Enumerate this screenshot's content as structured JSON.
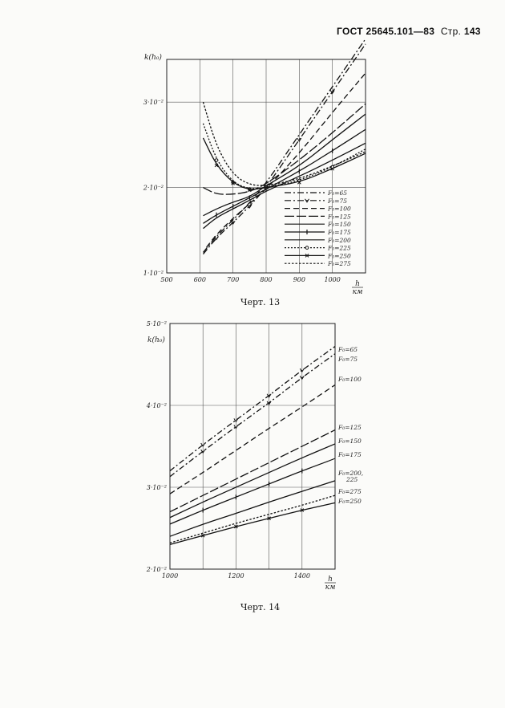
{
  "header": {
    "standard": "ГОСТ 25645.101—83",
    "page_label": "Стр.",
    "page_number": "143"
  },
  "captions": {
    "chart1": "Черт. 13",
    "chart2": "Черт. 14"
  },
  "chart_data": [
    {
      "type": "line",
      "ylabel": "k(h₀)",
      "xlabel": "h, км",
      "xlim": [
        500,
        1100
      ],
      "ylim": [
        0.01,
        0.035
      ],
      "x_ticks": [
        "500",
        "600",
        "700",
        "800",
        "900",
        "1000"
      ],
      "y_ticks": [
        "1·10⁻²",
        "2·10⁻²",
        "3·10⁻²"
      ],
      "legend_position": "bottom-right",
      "series": [
        {
          "name": "F₀=65",
          "x": [
            610,
            650,
            700,
            750,
            800,
            900,
            1000,
            1100
          ],
          "y": [
            0.0124,
            0.0143,
            0.0162,
            0.0182,
            0.0205,
            0.0262,
            0.0318,
            0.0374
          ]
        },
        {
          "name": "F₀=75",
          "x": [
            610,
            650,
            700,
            750,
            800,
            900,
            1000,
            1100
          ],
          "y": [
            0.0122,
            0.0141,
            0.0159,
            0.0178,
            0.02,
            0.0256,
            0.0312,
            0.0368
          ]
        },
        {
          "name": "F₀=100",
          "x": [
            620,
            650,
            700,
            750,
            800,
            900,
            1000,
            1100
          ],
          "y": [
            0.013,
            0.0145,
            0.0164,
            0.0181,
            0.0198,
            0.024,
            0.0288,
            0.0334
          ]
        },
        {
          "name": "F₀=125",
          "x": [
            610,
            650,
            700,
            750,
            800,
            900,
            1000,
            1100
          ],
          "y": [
            0.02,
            0.0192,
            0.0192,
            0.0195,
            0.0204,
            0.0232,
            0.0264,
            0.0298
          ]
        },
        {
          "name": "F₀=150",
          "x": [
            610,
            650,
            700,
            750,
            800,
            900,
            1000,
            1100
          ],
          "y": [
            0.0167,
            0.0175,
            0.0183,
            0.0189,
            0.0202,
            0.0225,
            0.0256,
            0.0286
          ]
        },
        {
          "name": "F₀=175",
          "x": [
            610,
            650,
            700,
            750,
            800,
            900,
            1000,
            1100
          ],
          "y": [
            0.0158,
            0.0168,
            0.0178,
            0.0188,
            0.0198,
            0.0219,
            0.0243,
            0.0268
          ]
        },
        {
          "name": "F₀=200",
          "x": [
            610,
            650,
            700,
            750,
            800,
            900,
            1000,
            1100
          ],
          "y": [
            0.0152,
            0.0165,
            0.0175,
            0.0185,
            0.0196,
            0.0213,
            0.0232,
            0.0252
          ]
        },
        {
          "name": "F₀=225",
          "x": [
            610,
            650,
            700,
            750,
            800,
            900,
            1000,
            1100
          ],
          "y": [
            0.0275,
            0.0232,
            0.0206,
            0.0198,
            0.02,
            0.0208,
            0.0224,
            0.0245
          ]
        },
        {
          "name": "F₀=250",
          "x": [
            610,
            650,
            700,
            750,
            800,
            900,
            1000,
            1100
          ],
          "y": [
            0.0258,
            0.0226,
            0.0205,
            0.0197,
            0.02,
            0.0206,
            0.0222,
            0.024
          ]
        },
        {
          "name": "F₀=275",
          "x": [
            610,
            650,
            700,
            750,
            800,
            900,
            1000,
            1100
          ],
          "y": [
            0.03,
            0.0248,
            0.0215,
            0.0203,
            0.0202,
            0.021,
            0.0225,
            0.0242
          ]
        }
      ]
    },
    {
      "type": "line",
      "ylabel": "k(h₀)",
      "xlabel": "h, км",
      "xlim": [
        1000,
        1500
      ],
      "ylim": [
        0.02,
        0.05
      ],
      "x_ticks": [
        "1000",
        "1200",
        "1400"
      ],
      "y_ticks": [
        "2·10⁻²",
        "3·10⁻²",
        "4·10⁻²",
        "5·10⁻²"
      ],
      "legend_position": "right",
      "series": [
        {
          "name": "F₀=65",
          "x": [
            1000,
            1100,
            1200,
            1300,
            1400,
            1500
          ],
          "y": [
            0.032,
            0.0352,
            0.0382,
            0.0412,
            0.0443,
            0.0472
          ]
        },
        {
          "name": "F₀=75",
          "x": [
            1000,
            1100,
            1200,
            1300,
            1400,
            1500
          ],
          "y": [
            0.0313,
            0.0344,
            0.0374,
            0.0403,
            0.0434,
            0.0463
          ]
        },
        {
          "name": "F₀=100",
          "x": [
            1000,
            1100,
            1200,
            1300,
            1400,
            1500
          ],
          "y": [
            0.0292,
            0.0318,
            0.0345,
            0.0372,
            0.0398,
            0.0425
          ]
        },
        {
          "name": "F₀=125",
          "x": [
            1000,
            1100,
            1200,
            1300,
            1400,
            1500
          ],
          "y": [
            0.027,
            0.029,
            0.031,
            0.033,
            0.035,
            0.037
          ]
        },
        {
          "name": "F₀=150",
          "x": [
            1000,
            1100,
            1200,
            1300,
            1400,
            1500
          ],
          "y": [
            0.0263,
            0.0282,
            0.03,
            0.0318,
            0.0336,
            0.0353
          ]
        },
        {
          "name": "F₀=175",
          "x": [
            1000,
            1100,
            1200,
            1300,
            1400,
            1500
          ],
          "y": [
            0.0255,
            0.0272,
            0.0288,
            0.0304,
            0.032,
            0.0335
          ]
        },
        {
          "name": "F₀=200, 225",
          "x": [
            1000,
            1100,
            1200,
            1300,
            1400,
            1500
          ],
          "y": [
            0.024,
            0.0255,
            0.0268,
            0.0282,
            0.0295,
            0.0308
          ]
        },
        {
          "name": "F₀=275",
          "x": [
            1000,
            1100,
            1200,
            1300,
            1400,
            1500
          ],
          "y": [
            0.0232,
            0.0244,
            0.0256,
            0.0267,
            0.0278,
            0.029
          ]
        },
        {
          "name": "F₀=250",
          "x": [
            1000,
            1100,
            1200,
            1300,
            1400,
            1500
          ],
          "y": [
            0.023,
            0.0241,
            0.0252,
            0.0262,
            0.0272,
            0.0281
          ]
        }
      ]
    }
  ]
}
